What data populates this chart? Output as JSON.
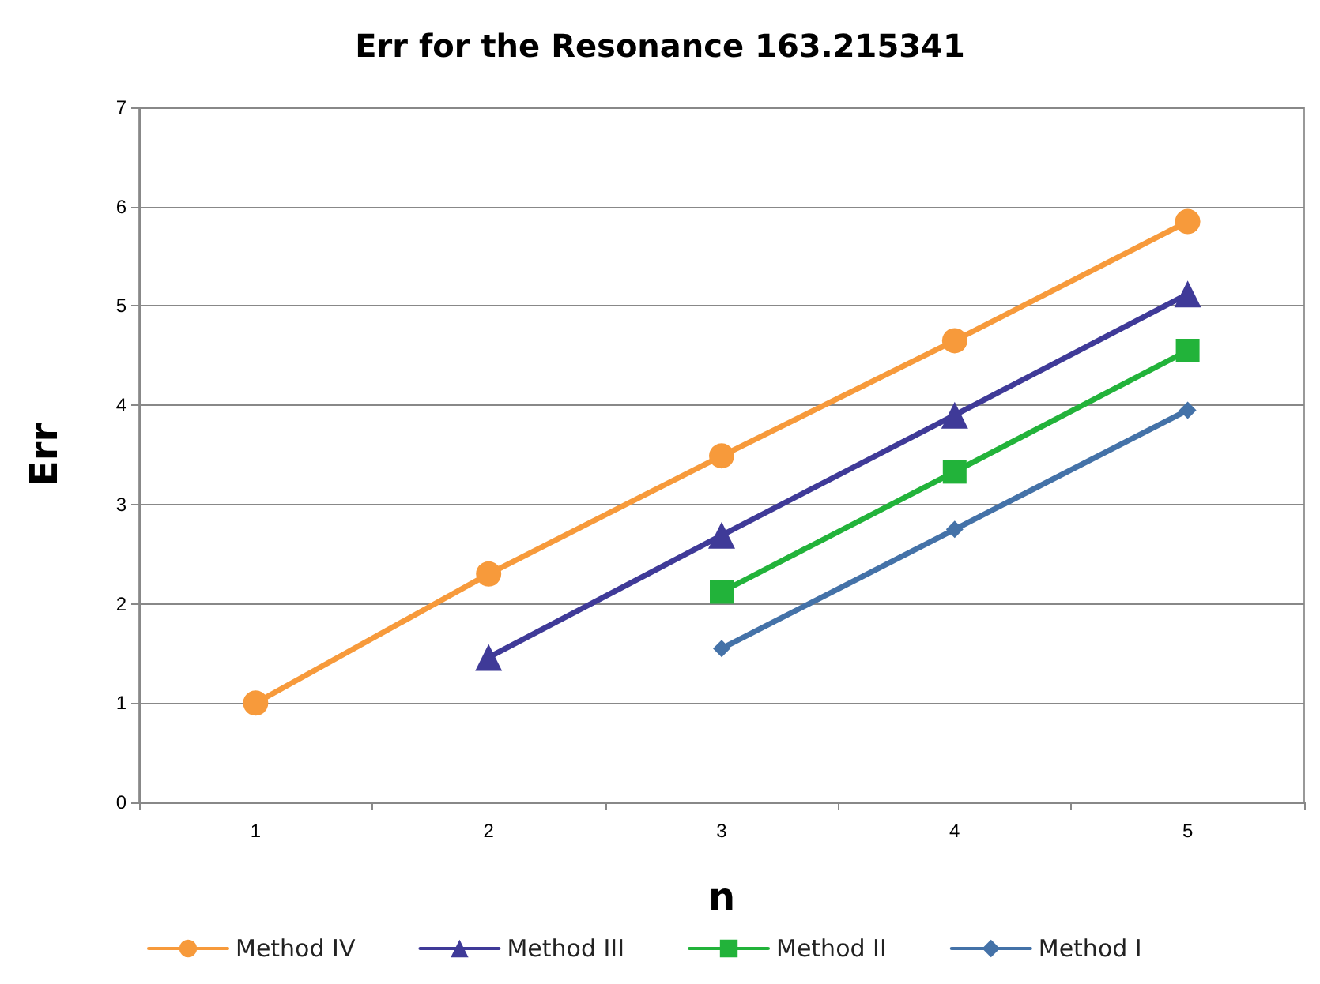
{
  "chart_data": {
    "type": "line",
    "title": "Err for the Resonance 163.215341",
    "xlabel": "n",
    "ylabel": "Err",
    "categories": [
      "1",
      "2",
      "3",
      "4",
      "5"
    ],
    "series": [
      {
        "name": "Method IV",
        "color": "#f79a3b",
        "marker": "circle",
        "values": [
          1.0,
          2.3,
          3.49,
          4.65,
          5.85
        ]
      },
      {
        "name": "Method III",
        "color": "#3f3a98",
        "marker": "triangle",
        "values": [
          null,
          1.46,
          2.69,
          3.9,
          5.12
        ]
      },
      {
        "name": "Method II",
        "color": "#22b33a",
        "marker": "square",
        "values": [
          null,
          null,
          2.12,
          3.33,
          4.55
        ]
      },
      {
        "name": "Method I",
        "color": "#4472a8",
        "marker": "diamond",
        "values": [
          null,
          null,
          1.55,
          2.75,
          3.95
        ]
      }
    ],
    "ylim": [
      0,
      7
    ],
    "yticks": [
      0,
      1,
      2,
      3,
      4,
      5,
      6,
      7
    ],
    "grid": "y",
    "legend": "bottom",
    "line_style": "solid"
  }
}
